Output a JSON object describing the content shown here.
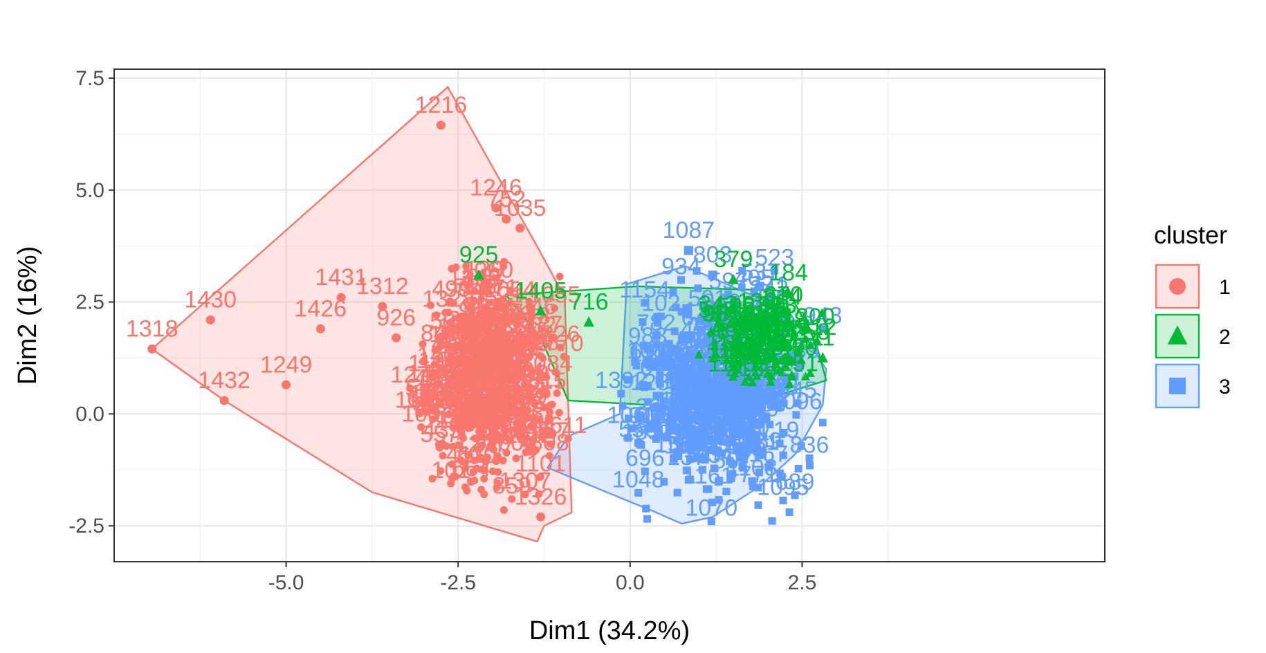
{
  "chart_data": {
    "type": "scatter",
    "xlabel": "Dim1 (34.2%)",
    "ylabel": "Dim2 (16%)",
    "xlim": [
      -7.5,
      6.9
    ],
    "ylim": [
      -3.3,
      7.7
    ],
    "x_ticks": [
      -5.0,
      -2.5,
      0.0,
      2.5
    ],
    "x_tick_labels": [
      "-5.0",
      "-2.5",
      "0.0",
      "2.5"
    ],
    "y_ticks": [
      -2.5,
      0.0,
      2.5,
      5.0,
      7.5
    ],
    "y_tick_labels": [
      "-2.5",
      "0.0",
      "2.5",
      "5.0",
      "7.5"
    ],
    "grid": true,
    "legend_title": "cluster",
    "legend_position": "right",
    "colors": {
      "1": "#F8766D",
      "2": "#00BA38",
      "3": "#619CFF"
    },
    "series": [
      {
        "name": "1",
        "shape": "circle",
        "hull": [
          [
            -6.95,
            1.45
          ],
          [
            -2.65,
            7.3
          ],
          [
            -1.3,
            3.6
          ],
          [
            -0.95,
            2.6
          ],
          [
            -0.85,
            -2.2
          ],
          [
            -1.25,
            -2.5
          ],
          [
            -1.35,
            -2.85
          ],
          [
            -3.75,
            -1.75
          ],
          [
            -5.9,
            0.3
          ]
        ],
        "labeled_points": [
          {
            "id": "1318",
            "x": -6.95,
            "y": 1.45
          },
          {
            "id": "1430",
            "x": -6.1,
            "y": 2.1
          },
          {
            "id": "1432",
            "x": -5.9,
            "y": 0.3
          },
          {
            "id": "1426",
            "x": -4.5,
            "y": 1.9
          },
          {
            "id": "1431",
            "x": -4.2,
            "y": 2.6
          },
          {
            "id": "1249",
            "x": -5.0,
            "y": 0.65
          },
          {
            "id": "1216",
            "x": -2.75,
            "y": 6.45
          },
          {
            "id": "752",
            "x": -1.8,
            "y": 4.35
          },
          {
            "id": "1035",
            "x": -1.6,
            "y": 4.15
          },
          {
            "id": "1246",
            "x": -1.95,
            "y": 4.6
          },
          {
            "id": "1312",
            "x": -3.6,
            "y": 2.4
          },
          {
            "id": "926",
            "x": -3.4,
            "y": 1.7
          },
          {
            "id": "1326",
            "x": -1.3,
            "y": -2.3
          }
        ],
        "cloud": {
          "x_range": [
            -3.2,
            -0.9
          ],
          "y_range": [
            -2.2,
            3.4
          ]
        }
      },
      {
        "name": "2",
        "shape": "triangle",
        "hull": [
          [
            -1.8,
            2.65
          ],
          [
            0.1,
            2.85
          ],
          [
            2.3,
            2.75
          ],
          [
            2.7,
            1.6
          ],
          [
            2.85,
            0.75
          ],
          [
            1.5,
            0.1
          ],
          [
            -0.9,
            0.3
          ],
          [
            -1.3,
            1.7
          ]
        ],
        "labeled_points": [
          {
            "id": "716",
            "x": -0.6,
            "y": 2.05
          },
          {
            "id": "925",
            "x": -2.2,
            "y": 3.1
          },
          {
            "id": "1405",
            "x": -1.3,
            "y": 2.3
          },
          {
            "id": "379",
            "x": 1.5,
            "y": 3.0
          },
          {
            "id": "184",
            "x": 2.3,
            "y": 2.7
          },
          {
            "id": "11",
            "x": 2.8,
            "y": 1.25
          }
        ],
        "cloud": {
          "x_range": [
            1.0,
            2.9
          ],
          "y_range": [
            0.4,
            2.7
          ]
        }
      },
      {
        "name": "3",
        "shape": "square",
        "hull": [
          [
            -0.05,
            2.9
          ],
          [
            0.8,
            3.3
          ],
          [
            1.4,
            2.9
          ],
          [
            2.3,
            2.3
          ],
          [
            2.85,
            1.0
          ],
          [
            2.8,
            0.2
          ],
          [
            2.4,
            -0.9
          ],
          [
            1.9,
            -1.6
          ],
          [
            1.2,
            -2.3
          ],
          [
            0.75,
            -2.45
          ],
          [
            0.3,
            -2.15
          ],
          [
            -0.1,
            -1.9
          ],
          [
            -1.2,
            -1.2
          ],
          [
            -0.9,
            -0.5
          ],
          [
            -0.15,
            0.0
          ]
        ],
        "labeled_points": [
          {
            "id": "1087",
            "x": 0.85,
            "y": 3.65
          },
          {
            "id": "803",
            "x": 1.2,
            "y": 3.1
          }
        ],
        "cloud": {
          "x_range": [
            -0.25,
            2.8
          ],
          "y_range": [
            -2.4,
            3.2
          ]
        }
      }
    ]
  }
}
